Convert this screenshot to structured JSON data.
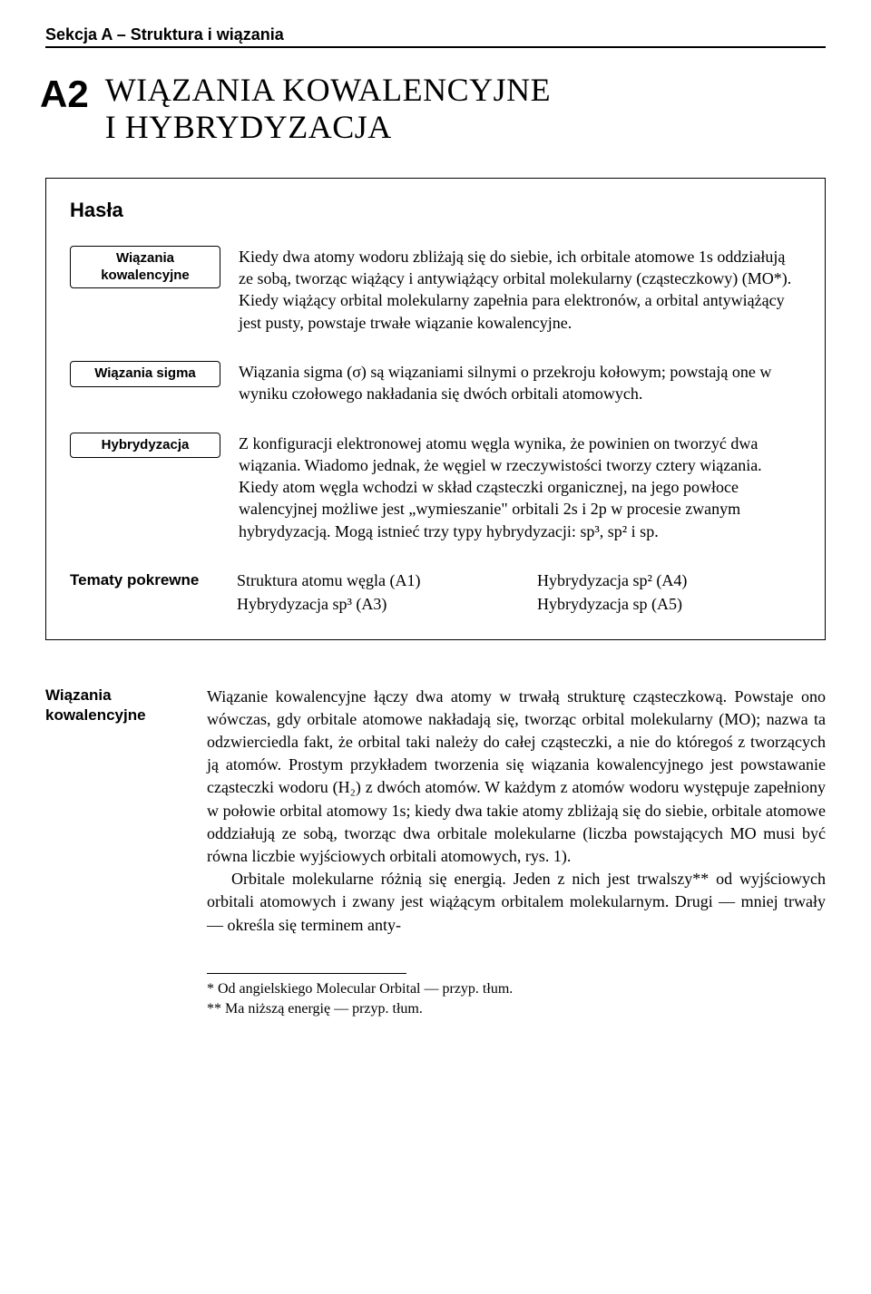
{
  "sectionHeader": "Sekcja A – Struktura i wiązania",
  "titleCode": "A2",
  "titleLine1": "WIĄZANIA KOWALENCYJNE",
  "titleLine2": "I HYBRYDYZACJA",
  "hasla": {
    "heading": "Hasła",
    "item1": {
      "labelLine1": "Wiązania",
      "labelLine2": "kowalencyjne",
      "text": "Kiedy dwa atomy wodoru zbliżają się do siebie, ich orbitale atomowe 1s oddziałują ze sobą, tworząc wiążący i antywiążący orbital molekularny (cząsteczkowy) (MO*). Kiedy wiążący orbital molekularny zapełnia para elektronów, a orbital antywiążący jest pusty, powstaje trwałe wiązanie kowalencyjne."
    },
    "item2": {
      "label": "Wiązania sigma",
      "text": "Wiązania sigma (σ) są wiązaniami silnymi o przekroju kołowym; powstają one w wyniku czołowego nakładania się dwóch orbitali atomowych."
    },
    "item3": {
      "label": "Hybrydyzacja",
      "text": "Z konfiguracji elektronowej atomu węgla wynika, że powinien on tworzyć dwa wiązania. Wiadomo jednak, że węgiel w rzeczywistości tworzy cztery wiązania. Kiedy atom węgla wchodzi w skład cząsteczki organicznej, na jego powłoce walencyjnej możliwe jest „wymieszanie\" orbitali 2s i 2p w procesie zwanym hybrydyzacją. Mogą istnieć trzy typy hybrydyzacji: sp³, sp² i sp."
    },
    "related": {
      "label": "Tematy pokrewne",
      "c1r1": "Struktura atomu węgla (A1)",
      "c1r2": "Hybrydyzacja sp³ (A3)",
      "c2r1": "Hybrydyzacja sp² (A4)",
      "c2r2": "Hybrydyzacja sp (A5)"
    }
  },
  "main": {
    "labelLine1": "Wiązania",
    "labelLine2": "kowalencyjne",
    "para1": "Wiązanie kowalencyjne łączy dwa atomy w trwałą strukturę cząsteczkową. Powstaje ono wówczas, gdy orbitale atomowe nakładają się, tworząc orbital molekularny (MO); nazwa ta odzwierciedla fakt, że orbital taki należy do całej cząsteczki, a nie do któregoś z tworzących ją atomów. Prostym przykładem tworzenia się wiązania kowalencyjnego jest powstawanie cząsteczki wodoru (H₂) z dwóch atomów. W każdym z atomów wodoru występuje zapełniony w połowie orbital atomowy 1s; kiedy dwa takie atomy zbliżają się do siebie, orbitale atomowe oddziałują ze sobą, tworząc dwa orbitale molekularne (liczba powstających MO musi być równa liczbie wyjściowych orbitali atomowych, rys. 1).",
    "para2": "Orbitale molekularne różnią się energią. Jeden z nich jest trwalszy** od wyjściowych orbitali atomowych i zwany jest wiążącym orbitalem molekularnym. Drugi — mniej trwały — określa się terminem anty-"
  },
  "footnotes": {
    "f1": "* Od angielskiego Molecular Orbital — przyp. tłum.",
    "f2": "** Ma niższą energię — przyp. tłum."
  }
}
